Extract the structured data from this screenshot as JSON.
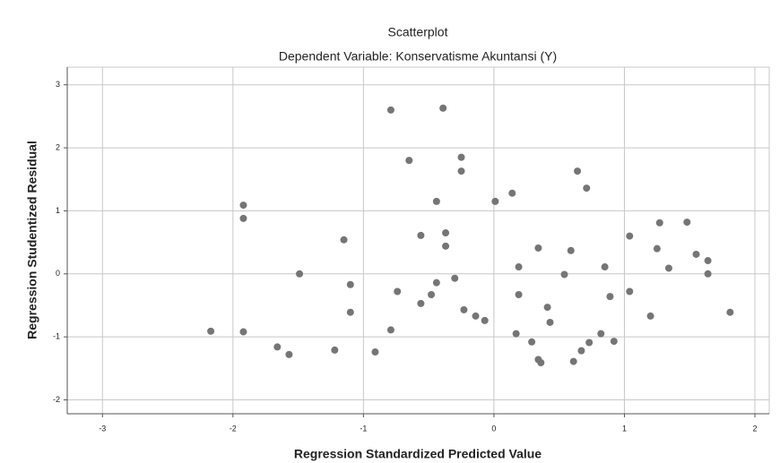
{
  "chart_data": {
    "type": "scatter",
    "title": "Scatterplot",
    "subtitle": "Dependent Variable: Konservatisme Akuntansi (Y)",
    "xlabel": "Regression Standardized Predicted Value",
    "ylabel": "Regression Studentized Residual",
    "color": "#757575",
    "grid": true,
    "xlim": [
      -3.27,
      2.11
    ],
    "ylim": [
      -2.22,
      3.28
    ],
    "xticks": [
      -3,
      -2,
      -1,
      0,
      1,
      2
    ],
    "yticks": [
      -2,
      -1,
      0,
      1,
      2,
      3
    ],
    "x": [
      -2.17,
      -1.92,
      -1.92,
      -1.92,
      -1.66,
      -1.57,
      -1.49,
      -1.22,
      -1.15,
      -1.1,
      -1.1,
      -0.91,
      -0.79,
      -0.79,
      -0.74,
      -0.65,
      -0.56,
      -0.56,
      -0.48,
      -0.44,
      -0.44,
      -0.39,
      -0.37,
      -0.37,
      -0.3,
      -0.25,
      -0.25,
      -0.23,
      -0.14,
      -0.07,
      0.01,
      0.14,
      0.17,
      0.19,
      0.19,
      0.29,
      0.34,
      0.34,
      0.36,
      0.41,
      0.43,
      0.54,
      0.59,
      0.61,
      0.64,
      0.67,
      0.71,
      0.73,
      0.82,
      0.85,
      0.89,
      0.92,
      1.04,
      1.04,
      1.2,
      1.25,
      1.27,
      1.34,
      1.48,
      1.55,
      1.64,
      1.64,
      1.81
    ],
    "values": [
      -0.91,
      1.09,
      0.88,
      -0.92,
      -1.16,
      -1.28,
      0.0,
      -1.21,
      0.54,
      -0.17,
      -0.61,
      -1.24,
      2.6,
      -0.89,
      -0.28,
      1.8,
      0.61,
      -0.47,
      -0.33,
      1.15,
      -0.14,
      2.63,
      0.65,
      0.44,
      -0.07,
      1.85,
      1.63,
      -0.57,
      -0.67,
      -0.74,
      1.15,
      1.28,
      -0.95,
      0.11,
      -0.33,
      -1.08,
      0.41,
      -1.36,
      -1.41,
      -0.53,
      -0.77,
      -0.01,
      0.37,
      -1.39,
      1.63,
      -1.22,
      1.36,
      -1.09,
      -0.95,
      0.11,
      -0.36,
      -1.07,
      0.6,
      -0.28,
      -0.67,
      0.4,
      0.81,
      0.09,
      0.82,
      0.31,
      0.21,
      0.0,
      -0.61
    ]
  }
}
